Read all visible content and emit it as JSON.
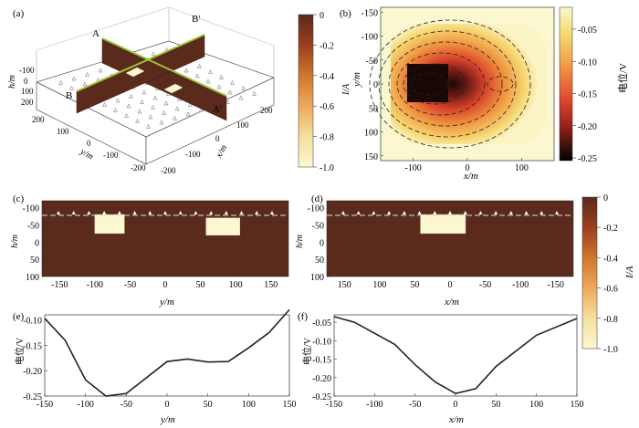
{
  "panel_labels": {
    "a": "(a)",
    "b": "(b)",
    "c": "(c)",
    "d": "(d)",
    "e": "(e)",
    "f": "(f)"
  },
  "panel_a": {
    "section_labels": {
      "A": "A",
      "A_prime": "A′",
      "B": "B",
      "B_prime": "B′"
    },
    "h_label": "h/m",
    "y_label": "y/m",
    "x_label": "x/m",
    "h_ticks": [
      "-100",
      "0",
      "100",
      "200"
    ],
    "y_ticks": [
      "200",
      "100",
      "0",
      "-100",
      "-200"
    ],
    "x_ticks": [
      "-200",
      "-100",
      "0",
      "100",
      "200"
    ]
  },
  "colorbar_conductivity": {
    "label": "I/A",
    "ticks": [
      "0",
      "-0.2",
      "-0.4",
      "-0.6",
      "-0.8",
      "-1.0"
    ],
    "colors": [
      "#5a2a1c",
      "#9b3f1e",
      "#d0772c",
      "#eda95a",
      "#f7df9e",
      "#fbf7d0"
    ]
  },
  "colorbar_potential": {
    "label": "电位/V",
    "ticks": [
      "-0.05",
      "-0.10",
      "-0.15",
      "-0.20",
      "-0.25"
    ],
    "colors": [
      "#fbf7d0",
      "#f6df7a",
      "#f2a44a",
      "#e0472f",
      "#8a1d17",
      "#2b0d0a",
      "#000000"
    ]
  },
  "chart_data": [
    {
      "panel": "b",
      "type": "heatmap",
      "xlabel": "x/m",
      "ylabel": "y/m",
      "xlim": [
        -160,
        160
      ],
      "ylim": [
        -160,
        160
      ],
      "xticks": [
        -100,
        0,
        100
      ],
      "yticks": [
        -150,
        -100,
        -50,
        0,
        50,
        100,
        150
      ],
      "value_label": "电位/V",
      "value_range": [
        -0.25,
        -0.03
      ],
      "inner_label": "I/A"
    },
    {
      "panel": "c",
      "type": "heatmap",
      "xlabel": "y/m",
      "ylabel": "h/m",
      "xticks": [
        -150,
        -100,
        -50,
        0,
        50,
        100,
        150
      ],
      "yticks": [
        -100,
        -50,
        0,
        50,
        100
      ],
      "xlim": [
        -175,
        175
      ],
      "ylim": [
        -120,
        100
      ],
      "bodies": [
        {
          "x0": -100,
          "x1": -58,
          "y0": -80,
          "y1": -25
        },
        {
          "x0": 58,
          "x1": 106,
          "y0": -70,
          "y1": -20
        }
      ]
    },
    {
      "panel": "d",
      "type": "heatmap",
      "xlabel": "x/m",
      "ylabel": "h/m",
      "xticks": [
        150,
        100,
        50,
        0,
        -50,
        -100,
        -150
      ],
      "yticks": [
        -100,
        -50,
        0,
        50,
        100
      ],
      "xlim": [
        175,
        -175
      ],
      "ylim": [
        -120,
        100
      ],
      "bodies": [
        {
          "x0": 42,
          "x1": -22,
          "y0": -80,
          "y1": -25
        }
      ]
    },
    {
      "panel": "e",
      "type": "line",
      "xlabel": "y/m",
      "ylabel": "电位/V",
      "xlim": [
        -150,
        150
      ],
      "ylim": [
        -0.25,
        -0.09
      ],
      "xticks": [
        -150,
        -100,
        -50,
        0,
        50,
        100,
        150
      ],
      "yticks": [
        -0.25,
        -0.2,
        -0.15,
        -0.1
      ],
      "ytick_labels": [
        "-0.25",
        "-0.20",
        "-0.15",
        "-0.10"
      ],
      "x": [
        -150,
        -125,
        -100,
        -75,
        -50,
        0,
        25,
        50,
        75,
        100,
        125,
        150
      ],
      "y": [
        -0.097,
        -0.14,
        -0.218,
        -0.25,
        -0.245,
        -0.182,
        -0.177,
        -0.183,
        -0.182,
        -0.155,
        -0.125,
        -0.08
      ]
    },
    {
      "panel": "f",
      "type": "line",
      "xlabel": "x/m",
      "ylabel": "电位/V",
      "xlim": [
        -150,
        150
      ],
      "ylim": [
        -0.25,
        -0.03
      ],
      "xticks": [
        -150,
        -100,
        -50,
        0,
        50,
        100,
        150
      ],
      "yticks": [
        -0.25,
        -0.2,
        -0.15,
        -0.1,
        -0.05
      ],
      "ytick_labels": [
        "-0.25",
        "-0.20",
        "-0.15",
        "-0.10",
        "-0.05"
      ],
      "x": [
        -150,
        -125,
        -100,
        -75,
        -50,
        -25,
        0,
        25,
        50,
        100,
        150
      ],
      "y": [
        -0.035,
        -0.05,
        -0.08,
        -0.11,
        -0.165,
        -0.212,
        -0.243,
        -0.23,
        -0.17,
        -0.085,
        -0.04
      ]
    }
  ]
}
